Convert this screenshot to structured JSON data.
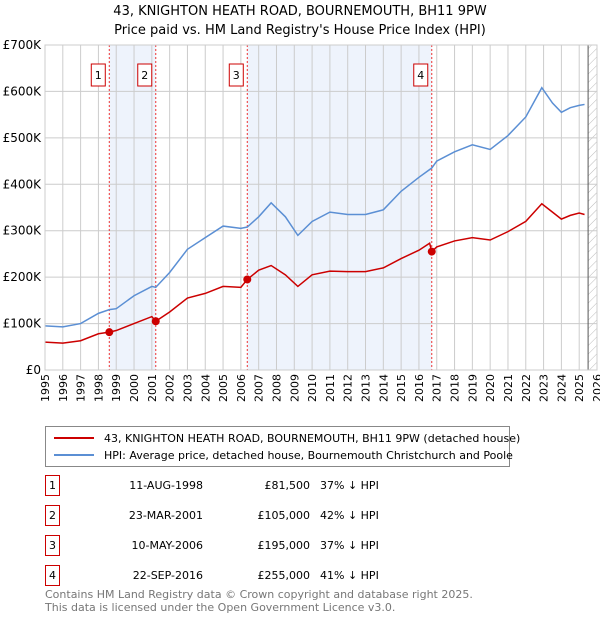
{
  "chart_data": {
    "type": "line",
    "title": "43, KNIGHTON HEATH ROAD, BOURNEMOUTH, BH11 9PW",
    "subtitle": "Price paid vs. HM Land Registry's House Price Index (HPI)",
    "xlim": [
      1995,
      2026
    ],
    "ylim": [
      0,
      700000
    ],
    "x_ticks": [
      "1995",
      "1996",
      "1997",
      "1998",
      "1999",
      "2000",
      "2001",
      "2002",
      "2003",
      "2004",
      "2005",
      "2006",
      "2007",
      "2008",
      "2009",
      "2010",
      "2011",
      "2012",
      "2013",
      "2014",
      "2015",
      "2016",
      "2017",
      "2018",
      "2019",
      "2020",
      "2021",
      "2022",
      "2023",
      "2024",
      "2025",
      "2026"
    ],
    "y_ticks": [
      {
        "v": 0,
        "l": "£0"
      },
      {
        "v": 100000,
        "l": "£100K"
      },
      {
        "v": 200000,
        "l": "£200K"
      },
      {
        "v": 300000,
        "l": "£300K"
      },
      {
        "v": 400000,
        "l": "£400K"
      },
      {
        "v": 500000,
        "l": "£500K"
      },
      {
        "v": 600000,
        "l": "£600K"
      },
      {
        "v": 700000,
        "l": "£700K"
      }
    ],
    "grid": true,
    "series": [
      {
        "name": "43, KNIGHTON HEATH ROAD, BOURNEMOUTH, BH11 9PW (detached house)",
        "color": "#cc0000",
        "x": [
          1995,
          1996,
          1997,
          1998,
          1998.61,
          1999,
          2000,
          2001,
          2001.22,
          2002,
          2003,
          2004,
          2005,
          2006,
          2006.36,
          2007,
          2007.7,
          2008.5,
          2009.2,
          2010,
          2011,
          2012,
          2013,
          2014,
          2015,
          2016,
          2016.6,
          2016.72,
          2017,
          2018,
          2019,
          2020,
          2021,
          2022,
          2022.9,
          2023.5,
          2024,
          2024.5,
          2025,
          2025.3
        ],
        "y": [
          60000,
          58000,
          63000,
          78000,
          81500,
          85000,
          100000,
          115000,
          105000,
          125000,
          155000,
          165000,
          180000,
          178000,
          195000,
          215000,
          225000,
          205000,
          180000,
          205000,
          213000,
          212000,
          212000,
          220000,
          240000,
          258000,
          273000,
          255000,
          265000,
          278000,
          285000,
          280000,
          298000,
          320000,
          358000,
          340000,
          325000,
          333000,
          338000,
          335000
        ]
      },
      {
        "name": "HPI: Average price, detached house, Bournemouth Christchurch and Poole",
        "color": "#5b8fd4",
        "x": [
          1995,
          1996,
          1997,
          1998,
          1998.61,
          1999,
          2000,
          2001,
          2001.22,
          2002,
          2003,
          2004,
          2005,
          2006,
          2006.36,
          2007,
          2007.7,
          2008.5,
          2009.2,
          2010,
          2011,
          2012,
          2013,
          2014,
          2015,
          2016,
          2016.72,
          2017,
          2018,
          2019,
          2020,
          2021,
          2022,
          2022.9,
          2023.5,
          2024,
          2024.5,
          2025,
          2025.3
        ],
        "y": [
          95000,
          93000,
          100000,
          122000,
          130000,
          132000,
          160000,
          180000,
          178000,
          210000,
          260000,
          285000,
          310000,
          305000,
          308000,
          330000,
          360000,
          330000,
          290000,
          320000,
          340000,
          335000,
          335000,
          345000,
          385000,
          415000,
          435000,
          450000,
          470000,
          485000,
          475000,
          505000,
          545000,
          608000,
          575000,
          555000,
          565000,
          570000,
          572000
        ]
      }
    ],
    "sales": [
      {
        "n": "1",
        "x": 1998.61,
        "date": "11-AUG-1998",
        "price": 81500,
        "price_label": "£81,500",
        "hpi": "37% ↓ HPI"
      },
      {
        "n": "2",
        "x": 2001.22,
        "date": "23-MAR-2001",
        "price": 105000,
        "price_label": "£105,000",
        "hpi": "42% ↓ HPI"
      },
      {
        "n": "3",
        "x": 2006.36,
        "date": "10-MAY-2006",
        "price": 195000,
        "price_label": "£195,000",
        "hpi": "37% ↓ HPI"
      },
      {
        "n": "4",
        "x": 2016.72,
        "date": "22-SEP-2016",
        "price": 255000,
        "price_label": "£255,000",
        "hpi": "41% ↓ HPI"
      }
    ],
    "shaded_ranges": [
      [
        1998.61,
        2001.22
      ],
      [
        2006.36,
        2016.72
      ]
    ],
    "hatched_from": 2025.5
  },
  "footer": {
    "line1": "Contains HM Land Registry data © Crown copyright and database right 2025.",
    "line2": "This data is licensed under the Open Government Licence v3.0."
  }
}
